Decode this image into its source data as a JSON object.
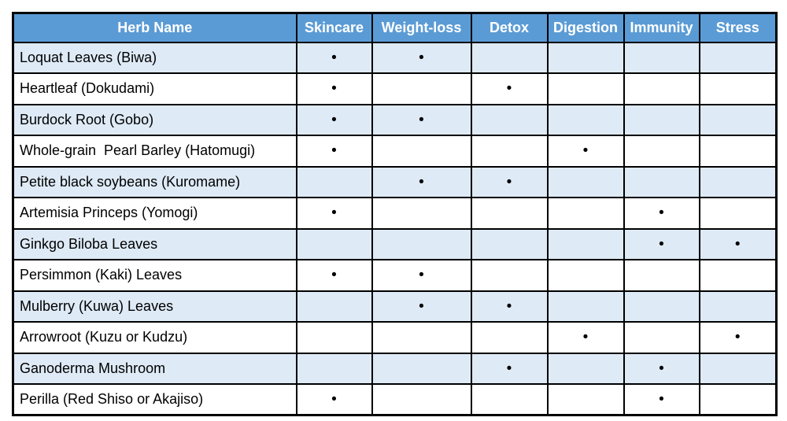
{
  "table": {
    "dot_glyph": "•",
    "columns": [
      {
        "key": "name",
        "label": "Herb Name"
      },
      {
        "key": "skincare",
        "label": "Skincare"
      },
      {
        "key": "weight_loss",
        "label": "Weight-loss"
      },
      {
        "key": "detox",
        "label": "Detox"
      },
      {
        "key": "digestion",
        "label": "Digestion"
      },
      {
        "key": "immunity",
        "label": "Immunity"
      },
      {
        "key": "stress",
        "label": "Stress"
      }
    ],
    "rows": [
      {
        "name": "Loquat Leaves (Biwa)",
        "benefits": [
          1,
          1,
          0,
          0,
          0,
          0
        ]
      },
      {
        "name": "Heartleaf (Dokudami)",
        "benefits": [
          1,
          0,
          1,
          0,
          0,
          0
        ]
      },
      {
        "name": "Burdock Root (Gobo)",
        "benefits": [
          1,
          1,
          0,
          0,
          0,
          0
        ]
      },
      {
        "name": "Whole-grain  Pearl Barley (Hatomugi)",
        "benefits": [
          1,
          0,
          0,
          1,
          0,
          0
        ]
      },
      {
        "name": "Petite black soybeans (Kuromame)",
        "benefits": [
          0,
          1,
          1,
          0,
          0,
          0
        ]
      },
      {
        "name": "Artemisia Princeps (Yomogi)",
        "benefits": [
          1,
          0,
          0,
          0,
          1,
          0
        ]
      },
      {
        "name": "Ginkgo Biloba Leaves",
        "benefits": [
          0,
          0,
          0,
          0,
          1,
          1
        ]
      },
      {
        "name": "Persimmon (Kaki) Leaves",
        "benefits": [
          1,
          1,
          0,
          0,
          0,
          0
        ]
      },
      {
        "name": "Mulberry (Kuwa) Leaves",
        "benefits": [
          0,
          1,
          1,
          0,
          0,
          0
        ]
      },
      {
        "name": "Arrowroot (Kuzu or Kudzu)",
        "benefits": [
          0,
          0,
          0,
          1,
          0,
          1
        ]
      },
      {
        "name": "Ganoderma Mushroom",
        "benefits": [
          0,
          0,
          1,
          0,
          1,
          0
        ]
      },
      {
        "name": "Perilla (Red Shiso or Akajiso)",
        "benefits": [
          1,
          0,
          0,
          0,
          1,
          0
        ]
      }
    ]
  },
  "colors": {
    "header_background": "#5b9bd5",
    "header_text": "#ffffff",
    "striped_row_background": "#deeaf6",
    "plain_row_background": "#ffffff",
    "border": "#000000",
    "body_text": "#000000"
  }
}
